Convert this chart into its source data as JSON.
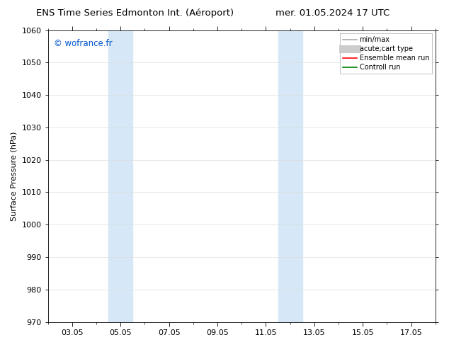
{
  "title_left": "ENS Time Series Edmonton Int. (Aéroport)",
  "title_right": "mer. 01.05.2024 17 UTC",
  "ylabel": "Surface Pressure (hPa)",
  "ylim": [
    970,
    1060
  ],
  "yticks": [
    970,
    980,
    990,
    1000,
    1010,
    1020,
    1030,
    1040,
    1050,
    1060
  ],
  "xtick_labels": [
    "03.05",
    "05.05",
    "07.05",
    "09.05",
    "11.05",
    "13.05",
    "15.05",
    "17.05"
  ],
  "xtick_positions": [
    3,
    5,
    7,
    9,
    11,
    13,
    15,
    17
  ],
  "xmin": 2,
  "xmax": 18,
  "shaded_bands": [
    {
      "xmin": 4.5,
      "xmax": 5.5
    },
    {
      "xmin": 11.5,
      "xmax": 12.5
    }
  ],
  "shade_color": "#d6e8f7",
  "background_color": "#ffffff",
  "watermark_text": "© wofrance.fr",
  "watermark_color": "#0055cc",
  "legend_entries": [
    {
      "label": "min/max",
      "color": "#aaaaaa",
      "lw": 1.2,
      "style": "-"
    },
    {
      "label": "acute;cart type",
      "color": "#cccccc",
      "lw": 5,
      "style": "-"
    },
    {
      "label": "Ensemble mean run",
      "color": "#ff0000",
      "lw": 1.2,
      "style": "-"
    },
    {
      "label": "Controll run",
      "color": "#008000",
      "lw": 1.2,
      "style": "-"
    }
  ],
  "grid_color": "#dddddd",
  "tick_fontsize": 8,
  "label_fontsize": 8,
  "title_fontsize": 9.5,
  "watermark_fontsize": 8.5
}
